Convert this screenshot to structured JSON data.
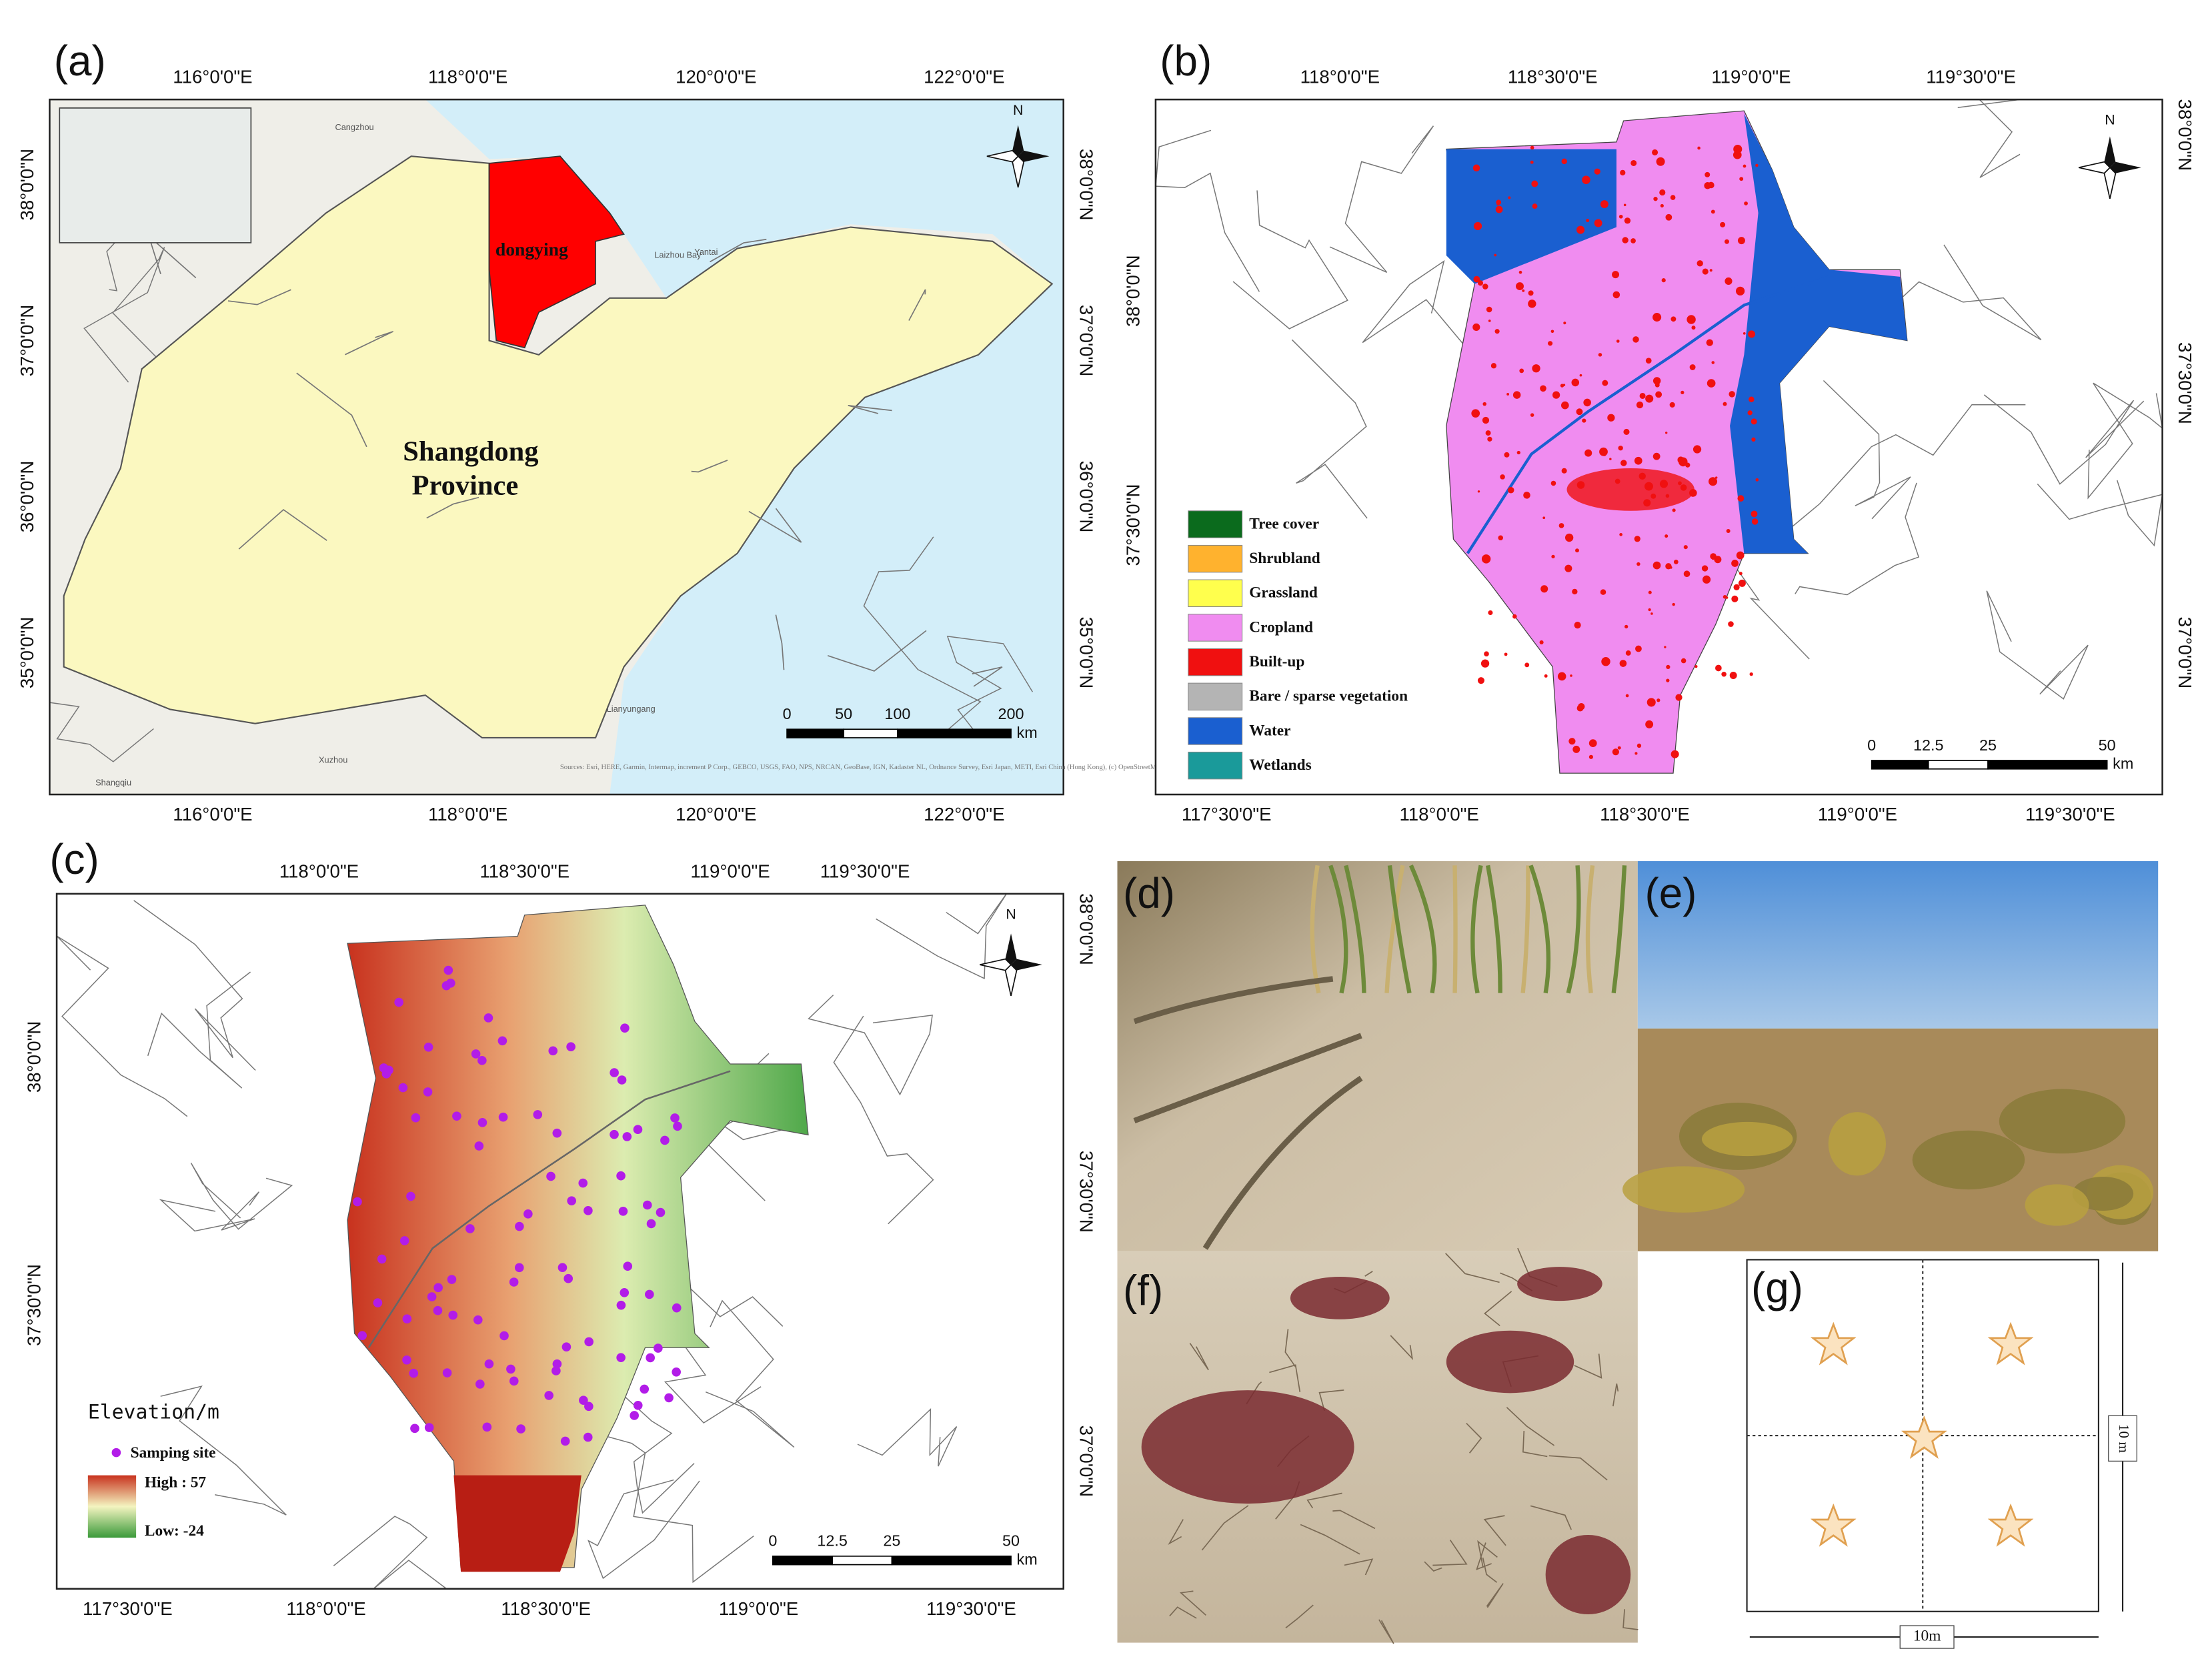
{
  "panels": {
    "a": {
      "label": "(a)",
      "top_ticks": [
        "116°0'0\"E",
        "118°0'0\"E",
        "120°0'0\"E",
        "122°0'0\"E"
      ],
      "bottom_ticks": [
        "116°0'0\"E",
        "118°0'0\"E",
        "120°0'0\"E",
        "122°0'0\"E"
      ],
      "left_ticks": [
        "38°0'0\"N",
        "37°0'0\"N",
        "36°0'0\"N",
        "35°0'0\"N"
      ],
      "right_ticks": [
        "38°0'0\"N",
        "37°0'0\"N",
        "36°0'0\"N",
        "35°0'0\"N"
      ],
      "north": "N",
      "city": "dongying",
      "province": [
        "Shangdong",
        "Province"
      ],
      "basemap_places": [
        "Cangzhou",
        "Laizhou Bay",
        "Yantai",
        "Lianyungang",
        "Shangqiu",
        "Xuzhou"
      ],
      "scale": {
        "ticks": [
          0,
          50,
          100,
          200
        ],
        "unit": "km"
      },
      "credits": "Sources: Esri, HERE, Garmin, Intermap, increment P Corp., GEBCO, USGS, FAO, NPS, NRCAN, GeoBase, IGN, Kadaster NL, Ordnance Survey, Esri Japan, METI, Esri China (Hong Kong), (c) OpenStreetMap contributors, and the GIS User Community"
    },
    "b": {
      "label": "(b)",
      "top_ticks": [
        "118°0'0\"E",
        "118°30'0\"E",
        "119°0'0\"E",
        "119°30'0\"E"
      ],
      "bottom_ticks": [
        "117°30'0\"E",
        "118°0'0\"E",
        "118°30'0\"E",
        "119°0'0\"E",
        "119°30'0\"E"
      ],
      "left_ticks": [
        "38°0'0\"N",
        "37°30'0\"N"
      ],
      "right_ticks": [
        "38°0'0\"N",
        "37°30'0\"N",
        "37°0'0\"N"
      ],
      "north": "N",
      "legend": [
        {
          "name": "Tree cover",
          "color": "#0b6b1d"
        },
        {
          "name": "Shrubland",
          "color": "#ffb22e"
        },
        {
          "name": "Grassland",
          "color": "#ffff4d"
        },
        {
          "name": "Cropland",
          "color": "#f08cf0"
        },
        {
          "name": "Built-up",
          "color": "#f01010"
        },
        {
          "name": "Bare / sparse vegetation",
          "color": "#b4b4b4"
        },
        {
          "name": "Water",
          "color": "#1a5fd0"
        },
        {
          "name": "Wetlands",
          "color": "#1a9a9a"
        }
      ],
      "scale": {
        "ticks": [
          0,
          12.5,
          25,
          50
        ],
        "unit": "km"
      }
    },
    "c": {
      "label": "(c)",
      "top_ticks": [
        "118°0'0\"E",
        "118°30'0\"E",
        "119°0'0\"E",
        "119°30'0\"E"
      ],
      "bottom_ticks": [
        "117°30'0\"E",
        "118°0'0\"E",
        "118°30'0\"E",
        "119°0'0\"E",
        "119°30'0\"E"
      ],
      "left_ticks": [
        "38°0'0\"N",
        "37°30'0\"N"
      ],
      "right_ticks": [
        "38°0'0\"N",
        "37°30'0\"N",
        "37°0'0\"N"
      ],
      "north": "N",
      "legend_title": "Elevation/m",
      "site": "Samping site",
      "high": "High : 57",
      "low": "Low: -24",
      "scale": {
        "ticks": [
          0,
          12.5,
          25,
          50
        ],
        "unit": "km"
      }
    },
    "d": {
      "label": "(d)"
    },
    "e": {
      "label": "(e)"
    },
    "f": {
      "label": "(f)"
    },
    "g": {
      "label": "(g)",
      "side_right": "10 m",
      "side_bottom": "10m"
    }
  }
}
